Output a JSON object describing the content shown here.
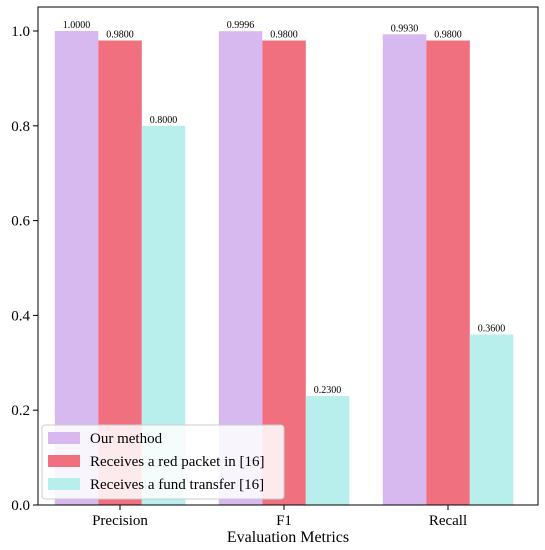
{
  "chart_data": {
    "type": "bar",
    "categories": [
      "Precision",
      "F1",
      "Recall"
    ],
    "series": [
      {
        "name": "Our method",
        "values": [
          1.0,
          0.9996,
          0.993
        ],
        "labels": [
          "1.0000",
          "0.9996",
          "0.9930"
        ],
        "color": "#d7b9f0"
      },
      {
        "name": "Receives a red packet in [16]",
        "values": [
          0.98,
          0.98,
          0.98
        ],
        "labels": [
          "0.9800",
          "0.9800",
          "0.9800"
        ],
        "color": "#f07080"
      },
      {
        "name": "Receives a fund transfer [16]",
        "values": [
          0.8,
          0.23,
          0.36
        ],
        "labels": [
          "0.8000",
          "0.2300",
          "0.3600"
        ],
        "color": "#b8efec"
      }
    ],
    "xlabel": "Evaluation Metrics",
    "ylabel": "",
    "ylim": [
      0,
      1.0
    ],
    "yticks": [
      "0.0",
      "0.2",
      "0.4",
      "0.6",
      "0.8",
      "1.0"
    ],
    "grid": false,
    "legend_position": "lower-left"
  }
}
